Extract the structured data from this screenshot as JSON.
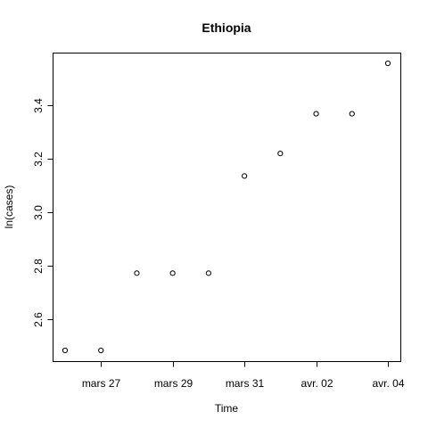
{
  "chart_data": {
    "type": "scatter",
    "title": "Ethiopia",
    "xlabel": "Time",
    "ylabel": "ln(cases)",
    "x": [
      "2020-03-26",
      "2020-03-27",
      "2020-03-28",
      "2020-03-29",
      "2020-03-30",
      "2020-03-31",
      "2020-04-01",
      "2020-04-02",
      "2020-04-03",
      "2020-04-04"
    ],
    "y": [
      2.485,
      2.485,
      2.773,
      2.773,
      2.773,
      3.135,
      3.219,
      3.367,
      3.367,
      3.555
    ],
    "x_ticks": [
      "2020-03-27",
      "2020-03-29",
      "2020-03-31",
      "2020-04-02",
      "2020-04-04"
    ],
    "x_tick_labels": [
      "mars 27",
      "mars 29",
      "mars 31",
      "avr. 02",
      "avr. 04"
    ],
    "y_ticks": [
      2.6,
      2.8,
      3.0,
      3.2,
      3.4
    ],
    "y_tick_labels": [
      "2.6",
      "2.8",
      "3.0",
      "3.2",
      "3.4"
    ],
    "xlim": [
      "2020-03-26",
      "2020-04-04"
    ],
    "ylim": [
      2.485,
      3.555
    ],
    "grid": false,
    "marker": "open-circle",
    "colors": {
      "points": "#000000",
      "frame": "#000000",
      "background": "#ffffff"
    }
  }
}
